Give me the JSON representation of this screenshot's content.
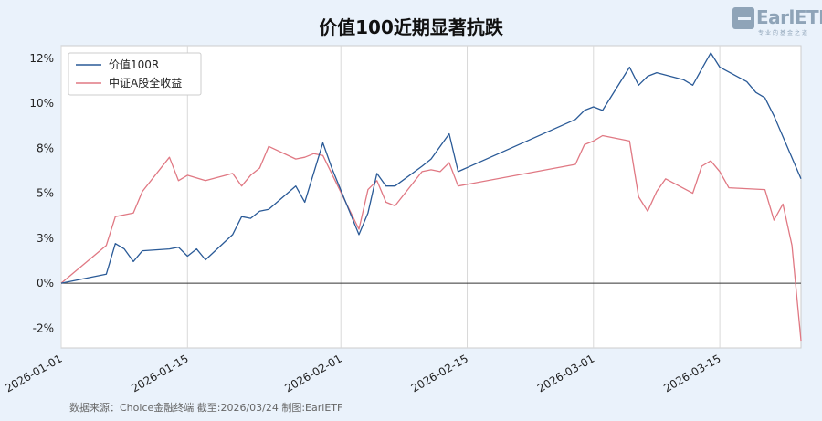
{
  "header": {
    "title": "价值100近期显著抗跌",
    "source_note": "数据来源：Choice金融终端 截至:2026/03/24 制图:EarlETF"
  },
  "logo": {
    "name": "EarlETF",
    "subtitle": "专业的基金之道"
  },
  "colors": {
    "background": "#eaf2fb",
    "plot_background": "#ffffff",
    "series_1": "#2a5a97",
    "series_2": "#e07883",
    "zero_line": "#333333",
    "grid": "#d9d9d9"
  },
  "chart_data": {
    "type": "line",
    "title": "价值100近期显著抗跌",
    "x_start": "2026-01-01",
    "x_end": "2026-03-24",
    "ylim": [
      -3.6,
      13.2
    ],
    "grid": true,
    "legend_position": "top-left",
    "xticks": [
      "2026-01-01",
      "2026-01-15",
      "2026-02-01",
      "2026-02-15",
      "2026-03-01",
      "2026-03-15"
    ],
    "yticks": [
      {
        "value": 12.5,
        "label": "12%"
      },
      {
        "value": 10.0,
        "label": "10%"
      },
      {
        "value": 7.5,
        "label": "8%"
      },
      {
        "value": 5.0,
        "label": "5%"
      },
      {
        "value": 2.5,
        "label": "3%"
      },
      {
        "value": 0.0,
        "label": "0%"
      },
      {
        "value": -2.5,
        "label": "-2%"
      }
    ],
    "series": [
      {
        "name": "价值100R",
        "color": "#2a5a97",
        "points": [
          [
            "2026-01-01",
            0.0
          ],
          [
            "2026-01-06",
            0.5
          ],
          [
            "2026-01-07",
            2.2
          ],
          [
            "2026-01-08",
            1.9
          ],
          [
            "2026-01-09",
            1.2
          ],
          [
            "2026-01-10",
            1.8
          ],
          [
            "2026-01-13",
            1.9
          ],
          [
            "2026-01-14",
            2.0
          ],
          [
            "2026-01-15",
            1.5
          ],
          [
            "2026-01-16",
            1.9
          ],
          [
            "2026-01-17",
            1.3
          ],
          [
            "2026-01-20",
            2.7
          ],
          [
            "2026-01-21",
            3.7
          ],
          [
            "2026-01-22",
            3.6
          ],
          [
            "2026-01-23",
            4.0
          ],
          [
            "2026-01-24",
            4.1
          ],
          [
            "2026-01-27",
            5.4
          ],
          [
            "2026-01-28",
            4.5
          ],
          [
            "2026-01-30",
            7.8
          ],
          [
            "2026-01-31",
            6.4
          ],
          [
            "2026-02-03",
            2.7
          ],
          [
            "2026-02-04",
            3.9
          ],
          [
            "2026-02-05",
            6.1
          ],
          [
            "2026-02-06",
            5.4
          ],
          [
            "2026-02-07",
            5.4
          ],
          [
            "2026-02-10",
            6.5
          ],
          [
            "2026-02-11",
            6.9
          ],
          [
            "2026-02-13",
            8.3
          ],
          [
            "2026-02-14",
            6.2
          ],
          [
            "2026-02-27",
            9.1
          ],
          [
            "2026-02-28",
            9.6
          ],
          [
            "2026-03-01",
            9.8
          ],
          [
            "2026-03-02",
            9.6
          ],
          [
            "2026-03-05",
            12.0
          ],
          [
            "2026-03-06",
            11.0
          ],
          [
            "2026-03-07",
            11.5
          ],
          [
            "2026-03-08",
            11.7
          ],
          [
            "2026-03-11",
            11.3
          ],
          [
            "2026-03-12",
            11.0
          ],
          [
            "2026-03-13",
            11.9
          ],
          [
            "2026-03-14",
            12.8
          ],
          [
            "2026-03-15",
            12.0
          ],
          [
            "2026-03-18",
            11.2
          ],
          [
            "2026-03-19",
            10.6
          ],
          [
            "2026-03-20",
            10.3
          ],
          [
            "2026-03-21",
            9.3
          ],
          [
            "2026-03-24",
            5.8
          ]
        ]
      },
      {
        "name": "中证A股全收益",
        "color": "#e07883",
        "points": [
          [
            "2026-01-01",
            0.0
          ],
          [
            "2026-01-06",
            2.1
          ],
          [
            "2026-01-07",
            3.7
          ],
          [
            "2026-01-08",
            3.8
          ],
          [
            "2026-01-09",
            3.9
          ],
          [
            "2026-01-10",
            5.1
          ],
          [
            "2026-01-13",
            7.0
          ],
          [
            "2026-01-14",
            5.7
          ],
          [
            "2026-01-15",
            6.0
          ],
          [
            "2026-01-17",
            5.7
          ],
          [
            "2026-01-20",
            6.1
          ],
          [
            "2026-01-21",
            5.4
          ],
          [
            "2026-01-22",
            6.0
          ],
          [
            "2026-01-23",
            6.4
          ],
          [
            "2026-01-24",
            7.6
          ],
          [
            "2026-01-27",
            6.9
          ],
          [
            "2026-01-28",
            7.0
          ],
          [
            "2026-01-29",
            7.2
          ],
          [
            "2026-01-30",
            7.1
          ],
          [
            "2026-02-03",
            3.0
          ],
          [
            "2026-02-04",
            5.2
          ],
          [
            "2026-02-05",
            5.7
          ],
          [
            "2026-02-06",
            4.5
          ],
          [
            "2026-02-07",
            4.3
          ],
          [
            "2026-02-10",
            6.2
          ],
          [
            "2026-02-11",
            6.3
          ],
          [
            "2026-02-12",
            6.2
          ],
          [
            "2026-02-13",
            6.7
          ],
          [
            "2026-02-14",
            5.4
          ],
          [
            "2026-02-27",
            6.6
          ],
          [
            "2026-02-28",
            7.7
          ],
          [
            "2026-03-01",
            7.9
          ],
          [
            "2026-03-02",
            8.2
          ],
          [
            "2026-03-05",
            7.9
          ],
          [
            "2026-03-06",
            4.8
          ],
          [
            "2026-03-07",
            4.0
          ],
          [
            "2026-03-08",
            5.1
          ],
          [
            "2026-03-09",
            5.8
          ],
          [
            "2026-03-12",
            5.0
          ],
          [
            "2026-03-13",
            6.5
          ],
          [
            "2026-03-14",
            6.8
          ],
          [
            "2026-03-15",
            6.2
          ],
          [
            "2026-03-16",
            5.3
          ],
          [
            "2026-03-20",
            5.2
          ],
          [
            "2026-03-21",
            3.5
          ],
          [
            "2026-03-22",
            4.4
          ],
          [
            "2026-03-23",
            2.1
          ],
          [
            "2026-03-24",
            -3.2
          ]
        ]
      }
    ]
  }
}
